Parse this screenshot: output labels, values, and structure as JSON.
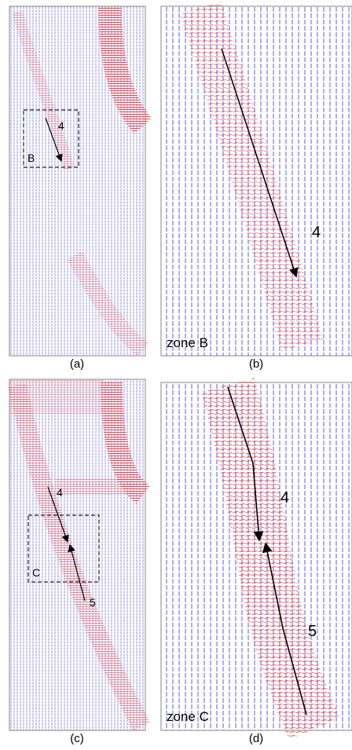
{
  "panels": [
    {
      "caption": "(a)",
      "labels": [
        "4",
        "B"
      ]
    },
    {
      "caption": "(b)",
      "labels": [
        "4",
        "zone B"
      ]
    },
    {
      "caption": "(c)",
      "labels": [
        "4",
        "C",
        "5"
      ]
    },
    {
      "caption": "(d)",
      "labels": [
        "4",
        "5",
        "zone C"
      ]
    }
  ]
}
